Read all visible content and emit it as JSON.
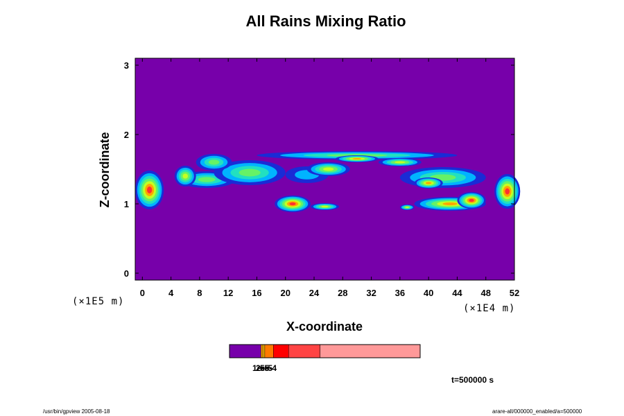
{
  "chart_data": {
    "type": "heatmap",
    "title": "All Rains Mixing Ratio",
    "xlabel": "X-coordinate",
    "ylabel": "Z-coordinate",
    "x_unit_label": "(×1E4 m)",
    "y_unit_label": "(×1E5 m)",
    "xlim": [
      -1,
      52
    ],
    "ylim": [
      -0.1,
      3.1
    ],
    "x_ticks": [
      "0",
      "4",
      "8",
      "12",
      "16",
      "20",
      "24",
      "28",
      "32",
      "36",
      "40",
      "44",
      "48",
      "52"
    ],
    "y_ticks": [
      "0",
      "1",
      "2",
      "3"
    ],
    "background_color": "#7700aa",
    "colorbar": {
      "colors": [
        "#7700aa",
        "#ffa500",
        "#ffbb00",
        "#ff7a00",
        "#ff0000",
        "#ff4444",
        "#ff9999"
      ],
      "fractions": [
        0.165,
        0.01,
        0.01,
        0.045,
        0.08,
        0.165,
        0.525
      ],
      "tick_labels": [
        "1e-5",
        "2e-5",
        "5e-4"
      ]
    },
    "rain_blobs": [
      {
        "x": 9,
        "z": 1.35,
        "rx": 4,
        "rz": 0.12,
        "level": 3
      },
      {
        "x": 15,
        "z": 1.45,
        "rx": 5,
        "rz": 0.18,
        "level": 3
      },
      {
        "x": 10,
        "z": 1.6,
        "rx": 2.5,
        "rz": 0.12,
        "level": 3
      },
      {
        "x": 30,
        "z": 1.7,
        "rx": 14,
        "rz": 0.06,
        "level": 3
      },
      {
        "x": 42,
        "z": 1.38,
        "rx": 6,
        "rz": 0.15,
        "level": 3
      },
      {
        "x": 23,
        "z": 1.42,
        "rx": 3,
        "rz": 0.12,
        "level": 1
      },
      {
        "x": 1,
        "z": 1.2,
        "rx": 2,
        "rz": 0.28,
        "level": 6
      },
      {
        "x": 51,
        "z": 1.18,
        "rx": 1.8,
        "rz": 0.25,
        "level": 6
      },
      {
        "x": 6,
        "z": 1.4,
        "rx": 1.5,
        "rz": 0.15,
        "level": 4
      },
      {
        "x": 26,
        "z": 1.5,
        "rx": 3,
        "rz": 0.1,
        "level": 4
      },
      {
        "x": 30,
        "z": 1.65,
        "rx": 3,
        "rz": 0.05,
        "level": 5
      },
      {
        "x": 36,
        "z": 1.6,
        "rx": 3,
        "rz": 0.06,
        "level": 4
      },
      {
        "x": 40,
        "z": 1.3,
        "rx": 2,
        "rz": 0.08,
        "level": 5
      },
      {
        "x": 21,
        "z": 1.0,
        "rx": 2.5,
        "rz": 0.12,
        "level": 6
      },
      {
        "x": 25.5,
        "z": 0.96,
        "rx": 2,
        "rz": 0.05,
        "level": 4
      },
      {
        "x": 37,
        "z": 0.95,
        "rx": 1,
        "rz": 0.04,
        "level": 4
      },
      {
        "x": 43,
        "z": 1.0,
        "rx": 5,
        "rz": 0.1,
        "level": 5
      },
      {
        "x": 46,
        "z": 1.05,
        "rx": 2,
        "rz": 0.12,
        "level": 6
      }
    ]
  },
  "labels": {
    "time": "t=500000 s",
    "footer_left": "/usr/bin/gpview 2005-08-18",
    "footer_right": "arare-all/000000_enabled/a=500000"
  }
}
